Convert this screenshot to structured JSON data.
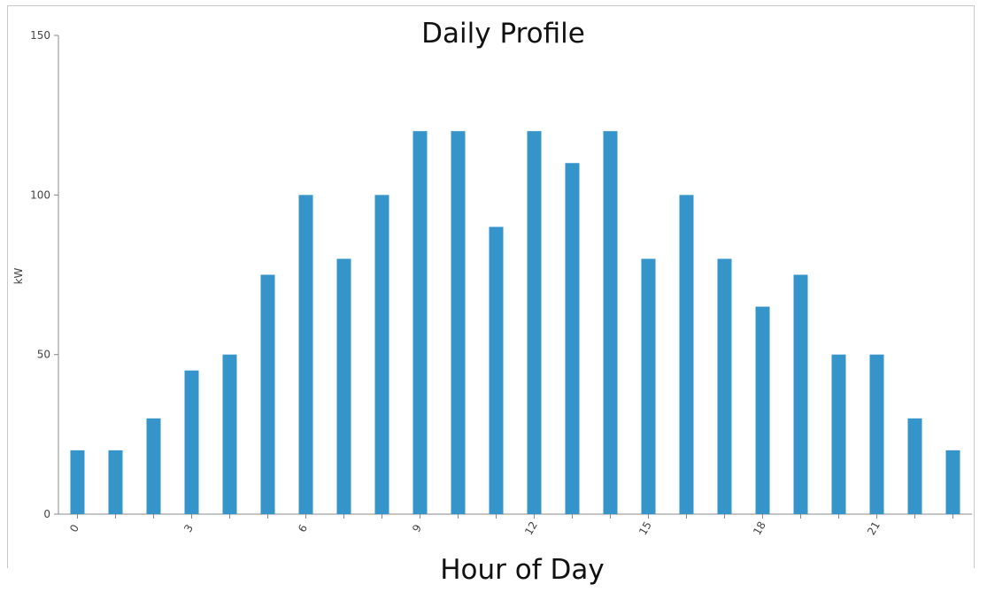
{
  "chart_data": {
    "type": "bar",
    "title": "Daily Profile",
    "xlabel": "Hour of Day",
    "ylabel": "kW",
    "categories": [
      "0",
      "1",
      "2",
      "3",
      "4",
      "5",
      "6",
      "7",
      "8",
      "9",
      "10",
      "11",
      "12",
      "13",
      "14",
      "15",
      "16",
      "17",
      "18",
      "19",
      "20",
      "21",
      "22",
      "23"
    ],
    "values": [
      20,
      20,
      30,
      45,
      50,
      75,
      100,
      80,
      100,
      120,
      120,
      90,
      120,
      110,
      120,
      80,
      100,
      80,
      65,
      75,
      50,
      50,
      30,
      20
    ],
    "x_tick_labels": [
      "0",
      "3",
      "6",
      "9",
      "12",
      "15",
      "18",
      "21"
    ],
    "y_ticks": [
      "0",
      "50",
      "100",
      "150"
    ],
    "ylim": [
      0,
      150
    ],
    "grid": false,
    "legend": "none",
    "bar_color": "#3594c9"
  }
}
